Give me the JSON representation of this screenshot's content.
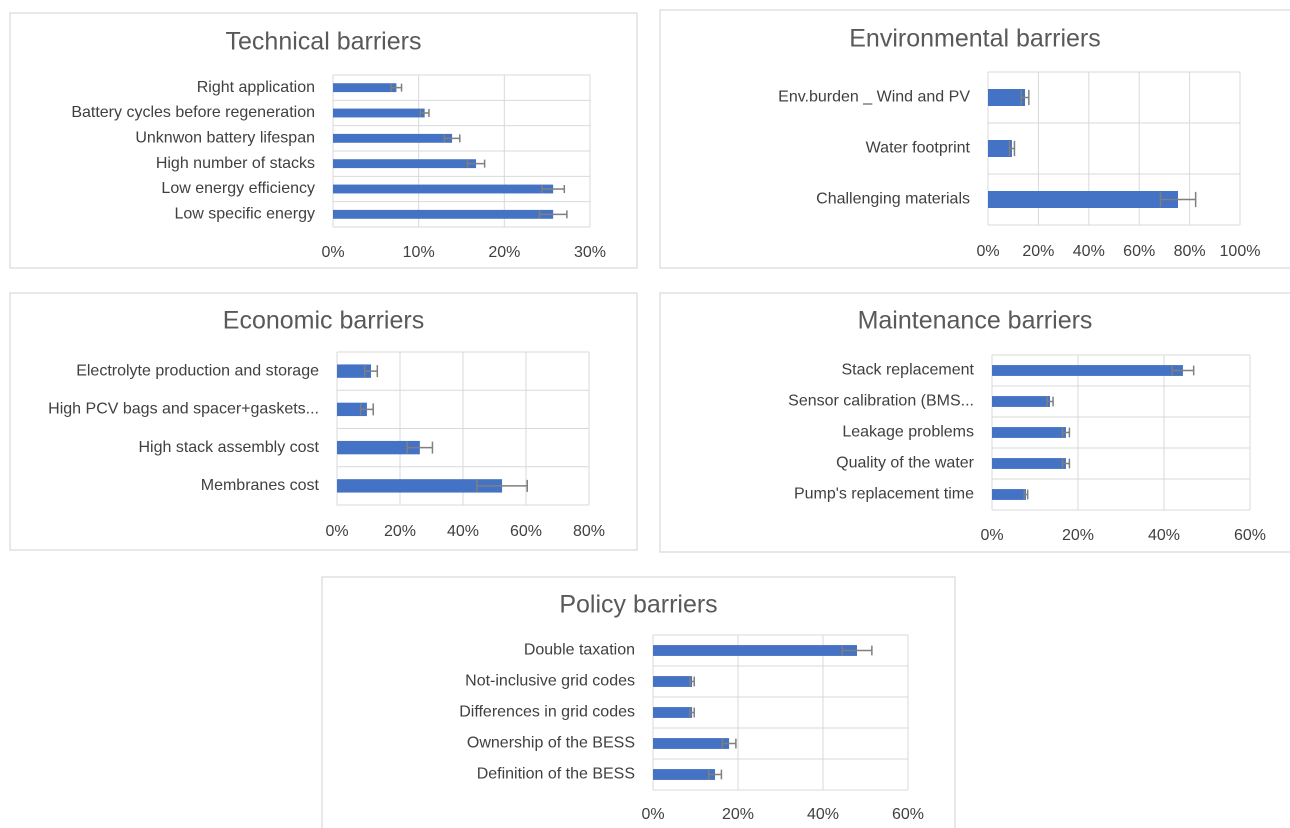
{
  "chart_data": [
    {
      "type": "bar",
      "orientation": "horizontal",
      "title": "Technical barriers",
      "categories": [
        "Right application",
        "Battery cycles before regeneration",
        "Unknwon battery lifespan",
        "High number of stacks",
        "Low energy efficiency",
        "Low specific energy"
      ],
      "values": [
        7.4,
        10.7,
        13.9,
        16.7,
        25.7,
        25.7
      ],
      "errors": [
        0.6,
        0.5,
        0.9,
        1.0,
        1.3,
        1.6
      ],
      "color": "#4472c4",
      "error_color": "#7f7f7f",
      "xlim": [
        0,
        30
      ],
      "xticks": [
        {
          "value": 0,
          "label": "0%"
        },
        {
          "value": 10,
          "label": "10%"
        },
        {
          "value": 20,
          "label": "20%"
        },
        {
          "value": 30,
          "label": "30%"
        }
      ],
      "grid": true
    },
    {
      "type": "bar",
      "orientation": "horizontal",
      "title": "Environmental barriers",
      "categories": [
        "Env.burden _ Wind and PV",
        "Water footprint",
        "Challenging materials"
      ],
      "values": [
        14.7,
        9.5,
        75.4
      ],
      "errors": [
        1.5,
        1.0,
        7.0
      ],
      "color": "#4472c4",
      "error_color": "#7f7f7f",
      "xlim": [
        0,
        100
      ],
      "xticks": [
        {
          "value": 0,
          "label": "0%"
        },
        {
          "value": 20,
          "label": "20%"
        },
        {
          "value": 40,
          "label": "40%"
        },
        {
          "value": 60,
          "label": "60%"
        },
        {
          "value": 80,
          "label": "80%"
        },
        {
          "value": 100,
          "label": "100%"
        }
      ],
      "grid": true
    },
    {
      "type": "bar",
      "orientation": "horizontal",
      "title": "Economic barriers",
      "categories": [
        "Electrolyte production and storage",
        "High PCV bags and spacer+gaskets...",
        "High stack assembly cost",
        "Membranes cost"
      ],
      "values": [
        10.8,
        9.5,
        26.3,
        52.4
      ],
      "errors": [
        2.0,
        2.0,
        4.0,
        8.0
      ],
      "color": "#4472c4",
      "error_color": "#7f7f7f",
      "xlim": [
        0,
        80
      ],
      "xticks": [
        {
          "value": 0,
          "label": "0%"
        },
        {
          "value": 20,
          "label": "20%"
        },
        {
          "value": 40,
          "label": "40%"
        },
        {
          "value": 60,
          "label": "60%"
        },
        {
          "value": 80,
          "label": "80%"
        }
      ],
      "grid": true
    },
    {
      "type": "bar",
      "orientation": "horizontal",
      "title": "Maintenance barriers",
      "categories": [
        "Stack replacement",
        "Sensor calibration (BMS...",
        "Leakage problems",
        "Quality of the water",
        "Pump's replacement time"
      ],
      "values": [
        44.4,
        13.5,
        17.2,
        17.2,
        7.9
      ],
      "errors": [
        2.5,
        0.7,
        0.8,
        0.8,
        0.4
      ],
      "color": "#4472c4",
      "error_color": "#7f7f7f",
      "xlim": [
        0,
        60
      ],
      "xticks": [
        {
          "value": 0,
          "label": "0%"
        },
        {
          "value": 20,
          "label": "20%"
        },
        {
          "value": 40,
          "label": "40%"
        },
        {
          "value": 60,
          "label": "60%"
        }
      ],
      "grid": true
    },
    {
      "type": "bar",
      "orientation": "horizontal",
      "title": "Policy barriers",
      "categories": [
        "Double taxation",
        "Not-inclusive grid codes",
        "Differences in grid codes",
        "Ownership of the BESS",
        "Definition of the BESS"
      ],
      "values": [
        48.0,
        9.2,
        9.2,
        17.9,
        14.6
      ],
      "errors": [
        3.5,
        0.5,
        0.5,
        1.6,
        1.5
      ],
      "color": "#4472c4",
      "error_color": "#7f7f7f",
      "xlim": [
        0,
        60
      ],
      "xticks": [
        {
          "value": 0,
          "label": "0%"
        },
        {
          "value": 20,
          "label": "20%"
        },
        {
          "value": 40,
          "label": "40%"
        },
        {
          "value": 60,
          "label": "60%"
        }
      ],
      "grid": true
    }
  ]
}
